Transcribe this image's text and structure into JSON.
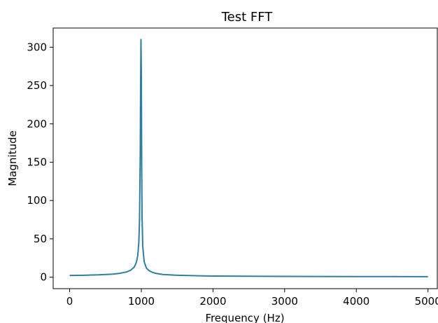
{
  "chart_data": {
    "type": "line",
    "title": "Test FFT",
    "xlabel": "Frequency (Hz)",
    "ylabel": "Magnitude",
    "xlim": [
      -230,
      5130
    ],
    "ylim": [
      -15,
      325
    ],
    "xticks": [
      0,
      1000,
      2000,
      3000,
      4000,
      5000
    ],
    "yticks": [
      0,
      50,
      100,
      150,
      200,
      250,
      300
    ],
    "grid": false,
    "line_color": "#2f7ea2",
    "series": [
      {
        "x": [
          0,
          200,
          400,
          600,
          700,
          800,
          850,
          900,
          930,
          950,
          965,
          975,
          985,
          990,
          995,
          1000,
          1005,
          1010,
          1020,
          1040,
          1070,
          1100,
          1150,
          1200,
          1300,
          1500,
          1800,
          2000,
          2500,
          3000,
          3500,
          4000,
          4500,
          5000
        ],
        "y": [
          2.2,
          2.5,
          3.0,
          4.0,
          5.0,
          7.0,
          9.0,
          13.0,
          19.0,
          28.0,
          45.0,
          75.0,
          160.0,
          250.0,
          310.0,
          270.0,
          150.0,
          80.0,
          40.0,
          20.0,
          12.0,
          9.0,
          6.5,
          5.0,
          3.5,
          2.5,
          1.8,
          1.5,
          1.2,
          1.0,
          0.9,
          0.8,
          0.8,
          0.7
        ]
      }
    ]
  }
}
